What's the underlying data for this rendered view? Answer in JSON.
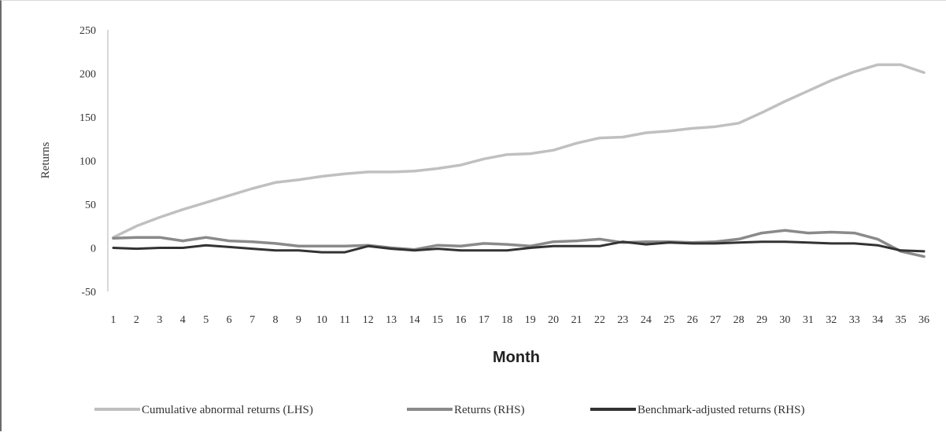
{
  "colors": {
    "cumulative": "#c0c0c0",
    "returns": "#8a8a8a",
    "benchmark": "#333333",
    "axis": "#b0b0b0",
    "text": "#333333"
  },
  "chart_data": {
    "type": "line",
    "title": "",
    "xlabel": "Month",
    "ylabel": "Returns",
    "ylim": [
      -50,
      250
    ],
    "yticks": [
      "250",
      "200",
      "150",
      "100",
      "50",
      "0",
      "-50"
    ],
    "grid": false,
    "legend_position": "bottom",
    "categories": [
      "1",
      "2",
      "3",
      "4",
      "5",
      "6",
      "7",
      "8",
      "9",
      "10",
      "11",
      "12",
      "13",
      "14",
      "15",
      "16",
      "17",
      "18",
      "19",
      "20",
      "21",
      "22",
      "23",
      "24",
      "25",
      "26",
      "27",
      "28",
      "29",
      "30",
      "31",
      "32",
      "33",
      "34",
      "35",
      "36"
    ],
    "series": [
      {
        "name": "Cumulative abnormal returns (LHS)",
        "color": "#c0c0c0",
        "values": [
          12,
          25,
          35,
          44,
          52,
          60,
          68,
          75,
          78,
          82,
          85,
          87,
          87,
          88,
          91,
          95,
          102,
          107,
          108,
          112,
          120,
          126,
          127,
          132,
          134,
          137,
          139,
          143,
          155,
          168,
          180,
          192,
          202,
          210,
          210,
          201
        ]
      },
      {
        "name": "Returns (RHS)",
        "color": "#8a8a8a",
        "values": [
          11,
          12,
          12,
          8,
          12,
          8,
          7,
          5,
          2,
          2,
          2,
          3,
          0,
          -2,
          3,
          2,
          5,
          4,
          2,
          7,
          8,
          10,
          6,
          7,
          7,
          6,
          7,
          10,
          17,
          20,
          17,
          18,
          17,
          10,
          -4,
          -10
        ]
      },
      {
        "name": "Benchmark-adjusted returns (RHS)",
        "color": "#333333",
        "values": [
          0,
          -1,
          0,
          0,
          3,
          1,
          -1,
          -3,
          -3,
          -5,
          -5,
          2,
          -1,
          -3,
          -1,
          -3,
          -3,
          -3,
          0,
          2,
          2,
          2,
          7,
          4,
          6,
          5,
          5,
          6,
          7,
          7,
          6,
          5,
          5,
          3,
          -3,
          -4
        ]
      }
    ]
  }
}
